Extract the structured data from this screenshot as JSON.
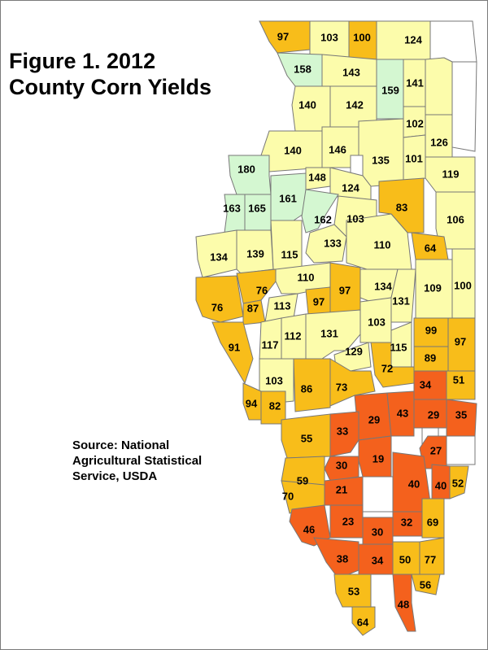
{
  "title_lines": [
    "Figure 1. 2012",
    "County Corn Yields"
  ],
  "source_lines": [
    "Source:  National",
    "Agricultural Statistical",
    "Service, USDA"
  ],
  "colors": {
    "very_low": "#f4611d",
    "low": "#f8bd1a",
    "medium": "#fcfcab",
    "high": "#d4f7d1",
    "no_data": "#ffffff",
    "border": "#777777"
  },
  "counties": [
    {
      "id": "c97a",
      "value": "97"
    },
    {
      "id": "c103a",
      "value": "103"
    },
    {
      "id": "c100a",
      "value": "100"
    },
    {
      "id": "c124a",
      "value": "124"
    },
    {
      "id": "c158",
      "value": "158"
    },
    {
      "id": "c143",
      "value": "143"
    },
    {
      "id": "c159",
      "value": "159"
    },
    {
      "id": "c141",
      "value": "141"
    },
    {
      "id": "c140a",
      "value": "140"
    },
    {
      "id": "c142",
      "value": "142"
    },
    {
      "id": "c102",
      "value": "102"
    },
    {
      "id": "c140b",
      "value": "140"
    },
    {
      "id": "c146",
      "value": "146"
    },
    {
      "id": "c135",
      "value": "135"
    },
    {
      "id": "c101",
      "value": "101"
    },
    {
      "id": "c126",
      "value": "126"
    },
    {
      "id": "c180",
      "value": "180"
    },
    {
      "id": "c148",
      "value": "148"
    },
    {
      "id": "c124b",
      "value": "124"
    },
    {
      "id": "c119",
      "value": "119"
    },
    {
      "id": "c163",
      "value": "163"
    },
    {
      "id": "c165",
      "value": "165"
    },
    {
      "id": "c161",
      "value": "161"
    },
    {
      "id": "c162",
      "value": "162"
    },
    {
      "id": "c103b",
      "value": "103"
    },
    {
      "id": "c83",
      "value": "83"
    },
    {
      "id": "c106",
      "value": "106"
    },
    {
      "id": "c134a",
      "value": "134"
    },
    {
      "id": "c139",
      "value": "139"
    },
    {
      "id": "c115a",
      "value": "115"
    },
    {
      "id": "c133",
      "value": "133"
    },
    {
      "id": "c110a",
      "value": "110"
    },
    {
      "id": "c64a",
      "value": "64"
    },
    {
      "id": "c76a",
      "value": "76"
    },
    {
      "id": "c76b",
      "value": "76"
    },
    {
      "id": "c87",
      "value": "87"
    },
    {
      "id": "c110b",
      "value": "110"
    },
    {
      "id": "c113",
      "value": "113"
    },
    {
      "id": "c97b",
      "value": "97"
    },
    {
      "id": "c97c",
      "value": "97"
    },
    {
      "id": "c134b",
      "value": "134"
    },
    {
      "id": "c131a",
      "value": "131"
    },
    {
      "id": "c109",
      "value": "109"
    },
    {
      "id": "c100b",
      "value": "100"
    },
    {
      "id": "c103c",
      "value": "103"
    },
    {
      "id": "c91",
      "value": "91"
    },
    {
      "id": "c117",
      "value": "117"
    },
    {
      "id": "c112",
      "value": "112"
    },
    {
      "id": "c131b",
      "value": "131"
    },
    {
      "id": "c129",
      "value": "129"
    },
    {
      "id": "c115b",
      "value": "115"
    },
    {
      "id": "c99",
      "value": "99"
    },
    {
      "id": "c97d",
      "value": "97"
    },
    {
      "id": "c89",
      "value": "89"
    },
    {
      "id": "c72",
      "value": "72"
    },
    {
      "id": "c103d",
      "value": "103"
    },
    {
      "id": "c86",
      "value": "86"
    },
    {
      "id": "c73",
      "value": "73"
    },
    {
      "id": "c34a",
      "value": "34"
    },
    {
      "id": "c51",
      "value": "51"
    },
    {
      "id": "c94",
      "value": "94"
    },
    {
      "id": "c82",
      "value": "82"
    },
    {
      "id": "c29a",
      "value": "29"
    },
    {
      "id": "c43",
      "value": "43"
    },
    {
      "id": "c29b",
      "value": "29"
    },
    {
      "id": "c35",
      "value": "35"
    },
    {
      "id": "c55",
      "value": "55"
    },
    {
      "id": "c33",
      "value": "33"
    },
    {
      "id": "c27",
      "value": "27"
    },
    {
      "id": "c19",
      "value": "19"
    },
    {
      "id": "c30a",
      "value": "30"
    },
    {
      "id": "c59",
      "value": "59"
    },
    {
      "id": "c40a",
      "value": "40"
    },
    {
      "id": "c40b",
      "value": "40"
    },
    {
      "id": "c52",
      "value": "52"
    },
    {
      "id": "c21",
      "value": "21"
    },
    {
      "id": "c70",
      "value": "70"
    },
    {
      "id": "c46",
      "value": "46"
    },
    {
      "id": "c23",
      "value": "23"
    },
    {
      "id": "c32",
      "value": "32"
    },
    {
      "id": "c69",
      "value": "69"
    },
    {
      "id": "c30b",
      "value": "30"
    },
    {
      "id": "c38",
      "value": "38"
    },
    {
      "id": "c34b",
      "value": "34"
    },
    {
      "id": "c50",
      "value": "50"
    },
    {
      "id": "c77",
      "value": "77"
    },
    {
      "id": "c53",
      "value": "53"
    },
    {
      "id": "c56",
      "value": "56"
    },
    {
      "id": "c48",
      "value": "48"
    },
    {
      "id": "c64b",
      "value": "64"
    }
  ]
}
